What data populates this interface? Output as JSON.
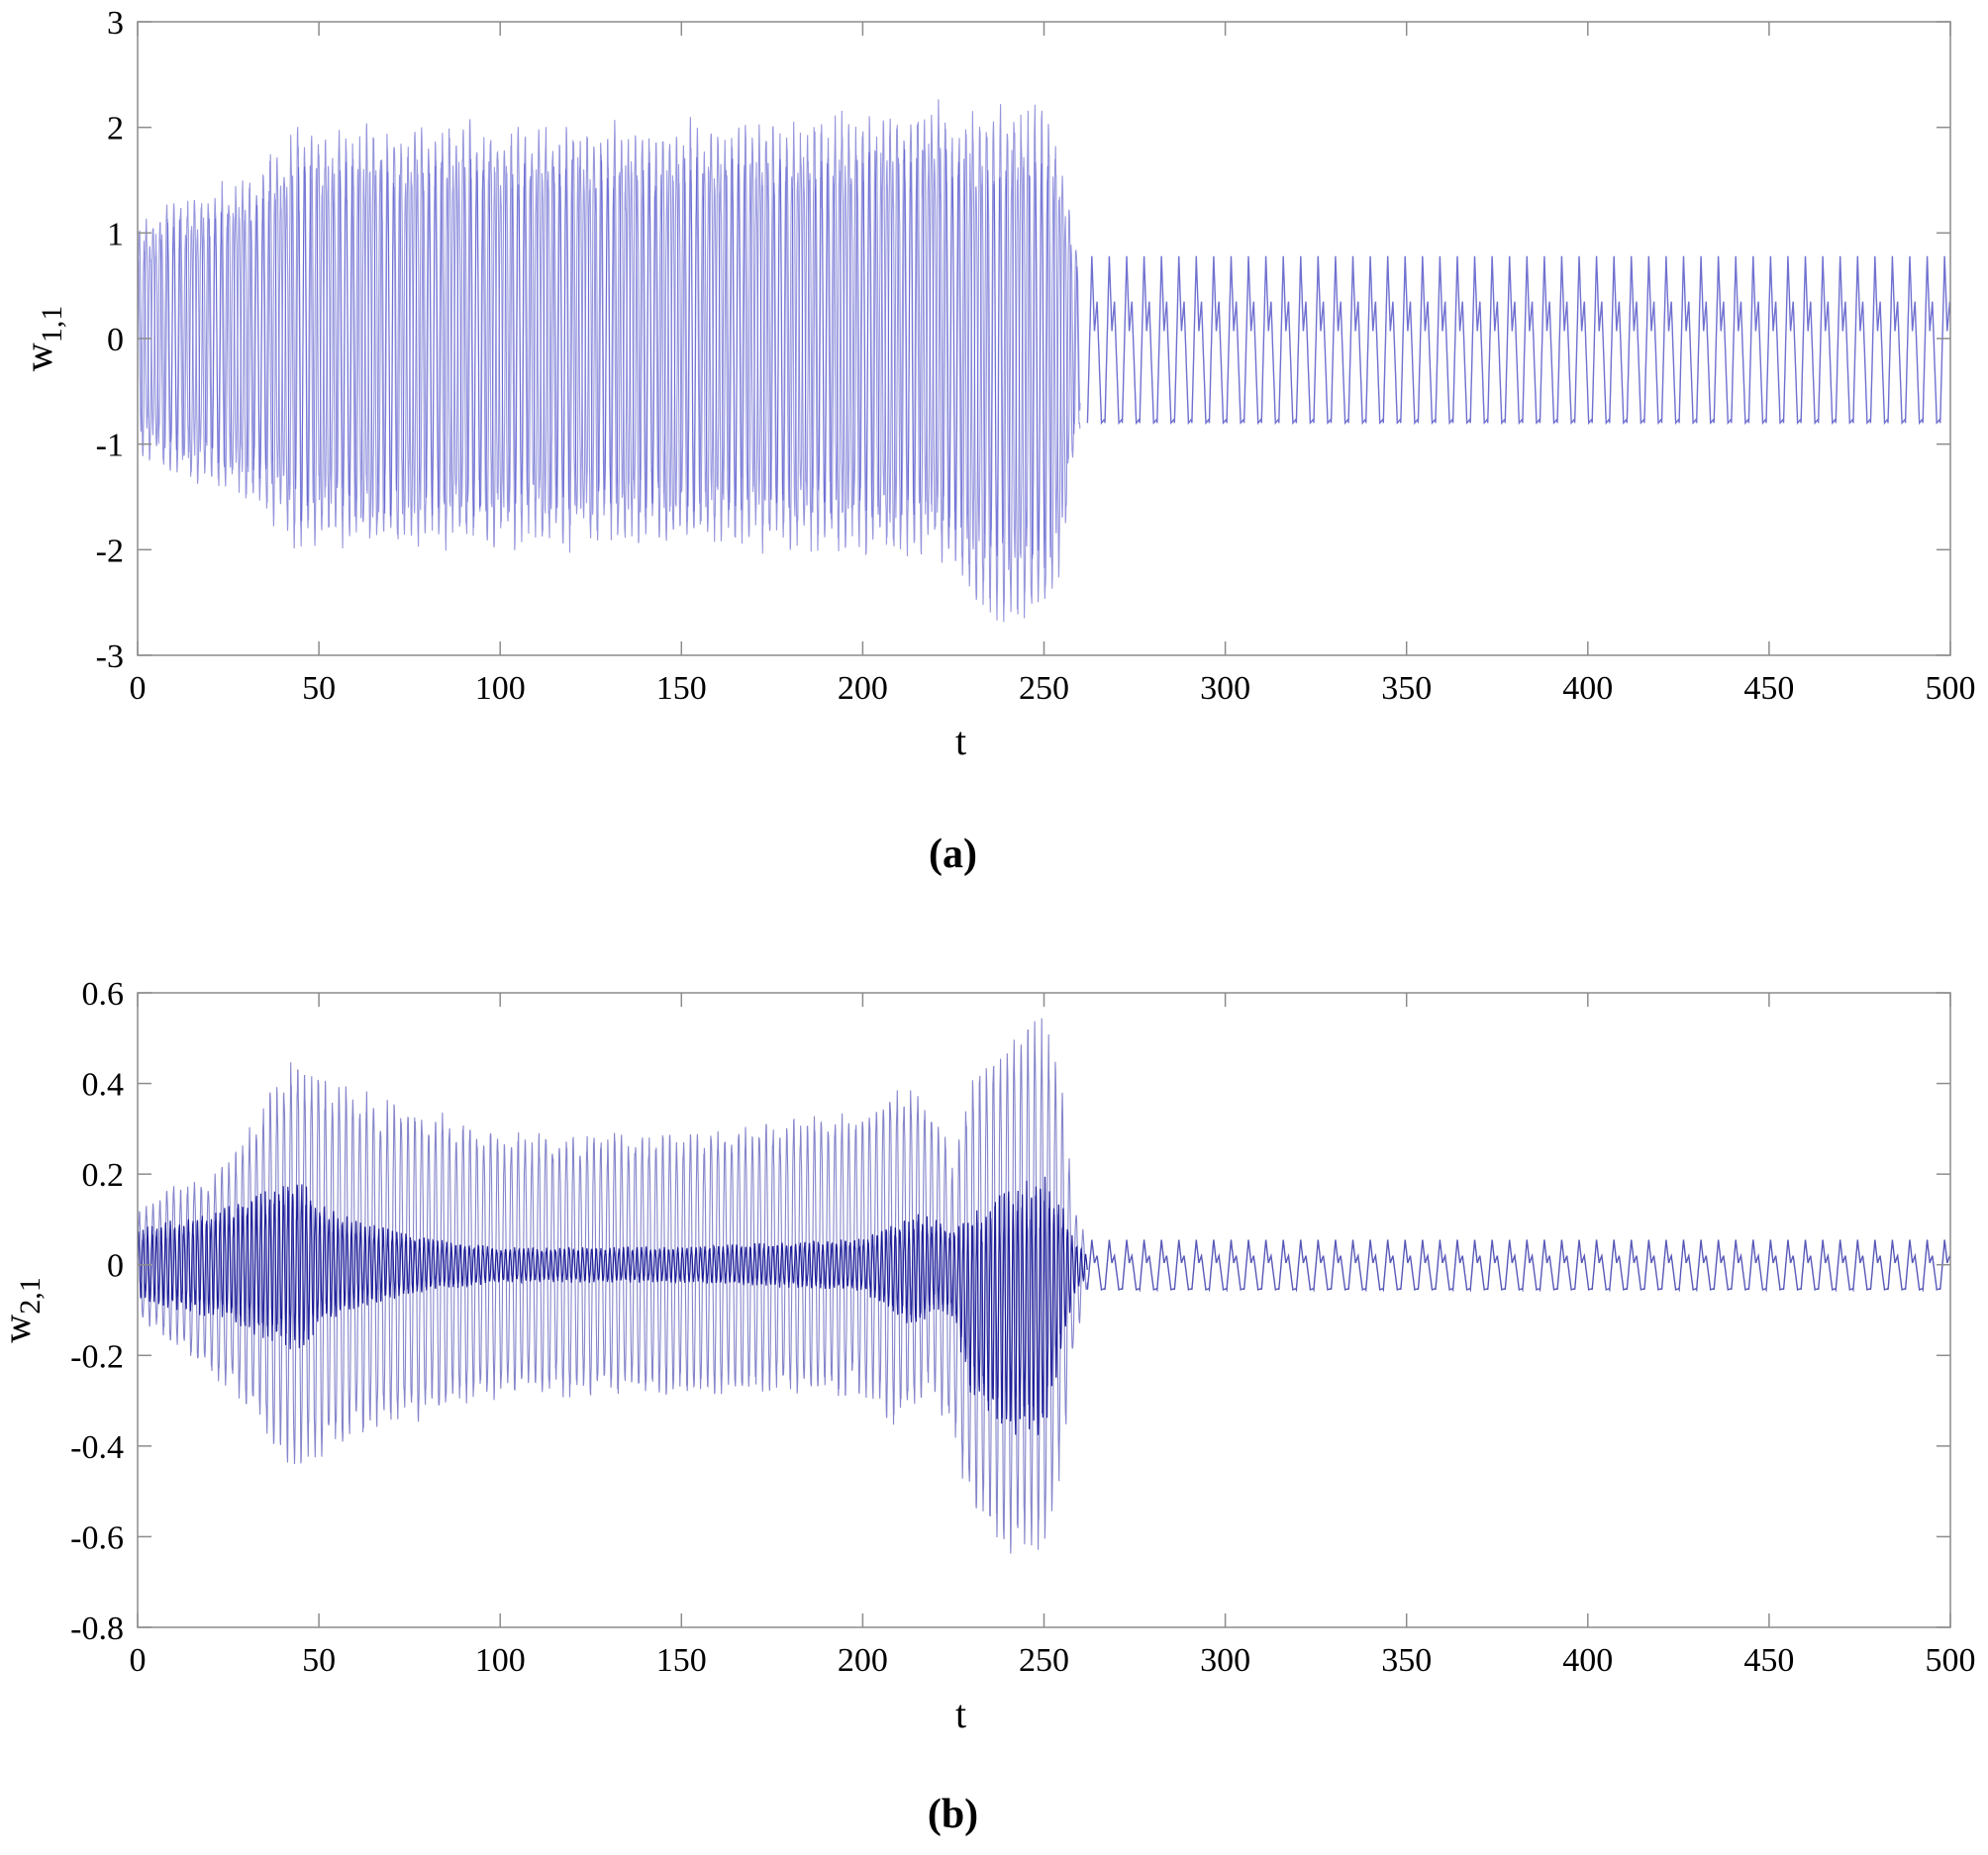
{
  "chart_data": [
    {
      "type": "line",
      "panel_label": "(a)",
      "xlabel": "t",
      "ylabel": "w",
      "ylabel_sub": "1,1",
      "xlim": [
        0,
        500
      ],
      "ylim": [
        -3,
        3
      ],
      "xticks": [
        0,
        50,
        100,
        150,
        200,
        250,
        300,
        350,
        400,
        450,
        500
      ],
      "yticks": [
        -3,
        -2,
        -1,
        0,
        1,
        2,
        3
      ],
      "xtick_labels": [
        "0",
        "50",
        "100",
        "150",
        "200",
        "250",
        "300",
        "350",
        "400",
        "450",
        "500"
      ],
      "ytick_labels": [
        "-3",
        "-2",
        "-1",
        "0",
        "1",
        "2",
        "3"
      ],
      "line_color": "#4040c0",
      "envelope": {
        "t": [
          0,
          10,
          20,
          30,
          40,
          45,
          50,
          60,
          100,
          150,
          200,
          210,
          220,
          225,
          230,
          240,
          250,
          255,
          258,
          260
        ],
        "upper": [
          1.1,
          1.4,
          1.45,
          1.6,
          1.9,
          2.15,
          2.0,
          2.1,
          2.1,
          2.1,
          2.2,
          2.25,
          2.3,
          2.2,
          2.2,
          2.25,
          2.25,
          1.8,
          1.0,
          0.9
        ],
        "lower": [
          -1.1,
          -1.4,
          -1.45,
          -1.6,
          -1.9,
          -2.15,
          -2.0,
          -2.1,
          -2.05,
          -2.05,
          -2.1,
          -2.2,
          -2.1,
          -2.3,
          -2.6,
          -2.75,
          -2.75,
          -2.2,
          -1.2,
          -0.9
        ]
      },
      "steady_state": {
        "t_start": 262,
        "t_end": 500,
        "period": 4.8,
        "max": 0.78,
        "secondary_max": 0.35,
        "min": -0.8
      }
    },
    {
      "type": "line",
      "panel_label": "(b)",
      "xlabel": "t",
      "ylabel": "w",
      "ylabel_sub": "2,1",
      "xlim": [
        0,
        500
      ],
      "ylim": [
        -0.8,
        0.6
      ],
      "xticks": [
        0,
        50,
        100,
        150,
        200,
        250,
        300,
        350,
        400,
        450,
        500
      ],
      "yticks": [
        -0.8,
        -0.6,
        -0.4,
        -0.2,
        0,
        0.2,
        0.4,
        0.6
      ],
      "xtick_labels": [
        "0",
        "50",
        "100",
        "150",
        "200",
        "250",
        "300",
        "350",
        "400",
        "450",
        "500"
      ],
      "ytick_labels": [
        "-0.8",
        "-0.6",
        "-0.4",
        "-0.2",
        "0",
        "0.2",
        "0.4",
        "0.6"
      ],
      "line_color": "#2020a0",
      "envelope": {
        "t": [
          0,
          10,
          20,
          30,
          40,
          45,
          50,
          60,
          80,
          100,
          150,
          200,
          210,
          215,
          220,
          225,
          230,
          240,
          250,
          255,
          258,
          262
        ],
        "upper": [
          0.12,
          0.18,
          0.2,
          0.3,
          0.45,
          0.48,
          0.44,
          0.4,
          0.35,
          0.3,
          0.3,
          0.35,
          0.42,
          0.4,
          0.35,
          0.25,
          0.42,
          0.52,
          0.55,
          0.4,
          0.15,
          0.05
        ],
        "lower": [
          -0.12,
          -0.18,
          -0.25,
          -0.32,
          -0.45,
          -0.48,
          -0.45,
          -0.4,
          -0.35,
          -0.3,
          -0.3,
          -0.3,
          -0.38,
          -0.32,
          -0.3,
          -0.4,
          -0.55,
          -0.64,
          -0.64,
          -0.45,
          -0.2,
          -0.05
        ],
        "inner_upper": [
          0.08,
          0.1,
          0.12,
          0.15,
          0.18,
          0.2,
          0.14,
          0.1,
          0.06,
          0.04,
          0.04,
          0.06,
          0.1,
          0.12,
          0.1,
          0.08,
          0.12,
          0.18,
          0.2,
          0.14,
          0.06,
          0.02
        ],
        "inner_lower": [
          -0.08,
          -0.1,
          -0.12,
          -0.15,
          -0.18,
          -0.2,
          -0.14,
          -0.1,
          -0.06,
          -0.04,
          -0.04,
          -0.06,
          -0.12,
          -0.15,
          -0.1,
          -0.12,
          -0.3,
          -0.38,
          -0.38,
          -0.2,
          -0.08,
          -0.02
        ]
      },
      "steady_state": {
        "t_start": 262,
        "t_end": 500,
        "period": 4.8,
        "max": 0.055,
        "secondary_max": 0.02,
        "min": -0.055
      }
    }
  ]
}
